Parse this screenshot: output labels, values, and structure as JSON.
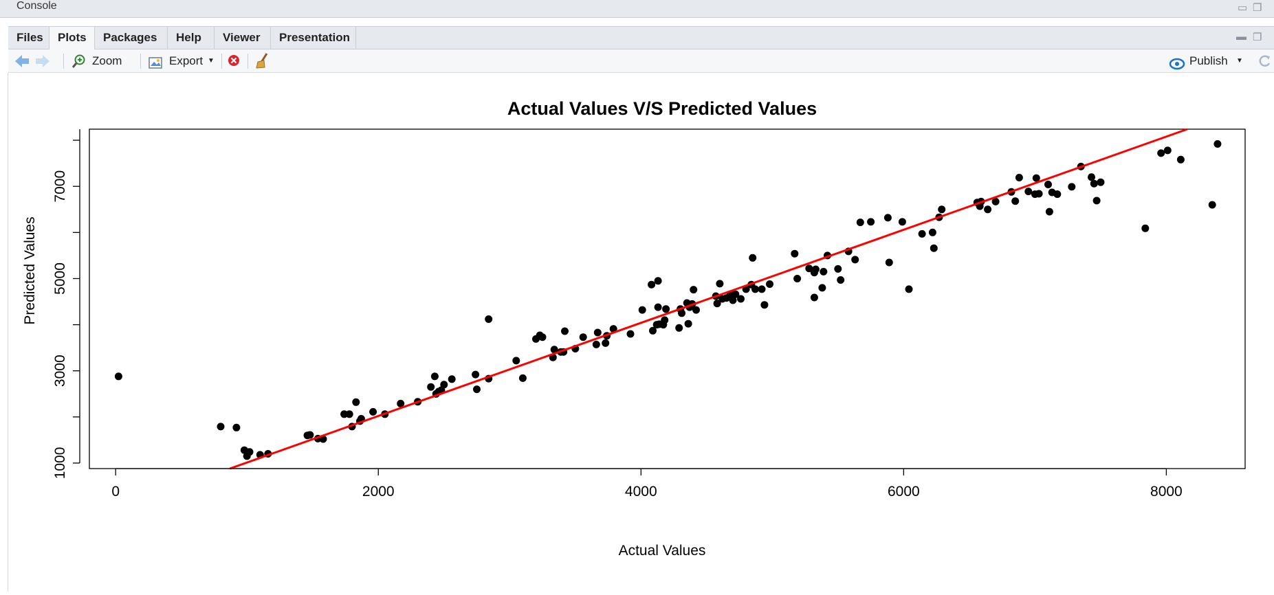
{
  "console": {
    "title": "Console"
  },
  "tabs": [
    {
      "label": "Files",
      "active": false
    },
    {
      "label": "Plots",
      "active": true
    },
    {
      "label": "Packages",
      "active": false
    },
    {
      "label": "Help",
      "active": false
    },
    {
      "label": "Viewer",
      "active": false
    },
    {
      "label": "Presentation",
      "active": false
    }
  ],
  "toolbar": {
    "zoom_label": "Zoom",
    "export_label": "Export",
    "publish_label": "Publish"
  },
  "colors": {
    "accent": "#1a73c8",
    "regression_line": "#ff0000",
    "points": "#000000",
    "remove_icon": "#d9262c"
  },
  "chart_data": {
    "type": "scatter",
    "title": "Actual Values V/S Predicted Values",
    "xlabel": "Actual Values",
    "ylabel": "Predicted Values",
    "xlim": [
      -200,
      8600
    ],
    "ylim": [
      880,
      8240
    ],
    "xticks": [
      0,
      2000,
      4000,
      6000,
      8000
    ],
    "yticks": [
      1000,
      3000,
      5000,
      7000
    ],
    "grid": false,
    "series": [
      {
        "values": [
          [
            22,
            2880
          ],
          [
            800,
            1790
          ],
          [
            920,
            1770
          ],
          [
            980,
            1280
          ],
          [
            1000,
            1150
          ],
          [
            1020,
            1240
          ],
          [
            1100,
            1180
          ],
          [
            1160,
            1200
          ],
          [
            1460,
            1600
          ],
          [
            1480,
            1610
          ],
          [
            1540,
            1530
          ],
          [
            1580,
            1520
          ],
          [
            1740,
            2060
          ],
          [
            1780,
            2060
          ],
          [
            1800,
            1790
          ],
          [
            1830,
            2320
          ],
          [
            1860,
            1910
          ],
          [
            1870,
            1960
          ],
          [
            1960,
            2110
          ],
          [
            2050,
            2060
          ],
          [
            2170,
            2290
          ],
          [
            2300,
            2330
          ],
          [
            2400,
            2650
          ],
          [
            2430,
            2880
          ],
          [
            2440,
            2500
          ],
          [
            2460,
            2550
          ],
          [
            2480,
            2580
          ],
          [
            2500,
            2700
          ],
          [
            2560,
            2820
          ],
          [
            2740,
            2920
          ],
          [
            2750,
            2600
          ],
          [
            2840,
            2830
          ],
          [
            2840,
            4120
          ],
          [
            3050,
            3220
          ],
          [
            3100,
            2840
          ],
          [
            3200,
            3690
          ],
          [
            3230,
            3770
          ],
          [
            3250,
            3730
          ],
          [
            3330,
            3290
          ],
          [
            3340,
            3460
          ],
          [
            3390,
            3410
          ],
          [
            3410,
            3410
          ],
          [
            3420,
            3860
          ],
          [
            3500,
            3480
          ],
          [
            3560,
            3730
          ],
          [
            3660,
            3570
          ],
          [
            3670,
            3830
          ],
          [
            3730,
            3600
          ],
          [
            3740,
            3760
          ],
          [
            3790,
            3910
          ],
          [
            3920,
            3800
          ],
          [
            4010,
            4320
          ],
          [
            4080,
            4870
          ],
          [
            4090,
            3870
          ],
          [
            4120,
            4000
          ],
          [
            4130,
            4950
          ],
          [
            4130,
            4380
          ],
          [
            4140,
            4010
          ],
          [
            4170,
            4000
          ],
          [
            4180,
            4100
          ],
          [
            4190,
            4340
          ],
          [
            4290,
            3930
          ],
          [
            4300,
            4340
          ],
          [
            4310,
            4250
          ],
          [
            4350,
            4470
          ],
          [
            4360,
            4020
          ],
          [
            4370,
            4380
          ],
          [
            4390,
            4450
          ],
          [
            4400,
            4760
          ],
          [
            4420,
            4320
          ],
          [
            4570,
            4620
          ],
          [
            4580,
            4460
          ],
          [
            4600,
            4890
          ],
          [
            4620,
            4560
          ],
          [
            4650,
            4580
          ],
          [
            4680,
            4660
          ],
          [
            4700,
            4530
          ],
          [
            4720,
            4660
          ],
          [
            4760,
            4560
          ],
          [
            4800,
            4770
          ],
          [
            4840,
            4870
          ],
          [
            4850,
            5450
          ],
          [
            4870,
            4770
          ],
          [
            4920,
            4770
          ],
          [
            4940,
            4430
          ],
          [
            4980,
            4880
          ],
          [
            5170,
            5540
          ],
          [
            5190,
            5000
          ],
          [
            5280,
            5220
          ],
          [
            5320,
            5130
          ],
          [
            5330,
            5200
          ],
          [
            5320,
            4590
          ],
          [
            5380,
            4800
          ],
          [
            5390,
            5150
          ],
          [
            5420,
            5500
          ],
          [
            5500,
            5210
          ],
          [
            5520,
            4970
          ],
          [
            5580,
            5590
          ],
          [
            5630,
            5410
          ],
          [
            5670,
            6220
          ],
          [
            5750,
            6230
          ],
          [
            5880,
            6320
          ],
          [
            5890,
            5350
          ],
          [
            5990,
            6230
          ],
          [
            6040,
            4770
          ],
          [
            6140,
            5970
          ],
          [
            6220,
            6000
          ],
          [
            6230,
            5660
          ],
          [
            6270,
            6330
          ],
          [
            6290,
            6500
          ],
          [
            6560,
            6650
          ],
          [
            6580,
            6570
          ],
          [
            6590,
            6670
          ],
          [
            6640,
            6500
          ],
          [
            6700,
            6670
          ],
          [
            6820,
            6880
          ],
          [
            6850,
            6680
          ],
          [
            6880,
            7190
          ],
          [
            6950,
            6890
          ],
          [
            7000,
            6830
          ],
          [
            7010,
            7180
          ],
          [
            7030,
            6840
          ],
          [
            7100,
            7040
          ],
          [
            7110,
            6450
          ],
          [
            7130,
            6870
          ],
          [
            7170,
            6830
          ],
          [
            7280,
            6990
          ],
          [
            7350,
            7430
          ],
          [
            7430,
            7200
          ],
          [
            7450,
            7060
          ],
          [
            7470,
            6690
          ],
          [
            7500,
            7090
          ],
          [
            7840,
            6090
          ],
          [
            7960,
            7720
          ],
          [
            8010,
            7780
          ],
          [
            8110,
            7580
          ],
          [
            8350,
            6600
          ],
          [
            8390,
            7920
          ]
        ]
      }
    ],
    "regression_line": {
      "x1": 870,
      "y1": 880,
      "x2": 8160,
      "y2": 8240
    }
  }
}
